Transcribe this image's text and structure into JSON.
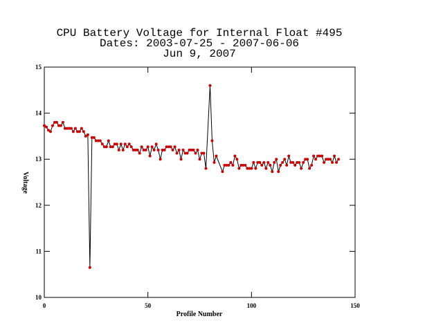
{
  "chart_data": {
    "type": "line",
    "title": "CPU Battery Voltage for Internal Float #495",
    "subtitle": "Dates:  2003-07-25 -  2007-06-06",
    "date_line": "Jun  9, 2007",
    "x_label": "Profile Number",
    "y_label": "Voltage",
    "xlim": [
      0,
      150
    ],
    "xticks": [
      0,
      50,
      100,
      150
    ],
    "ylim": [
      10,
      15
    ],
    "yticks": [
      10,
      11,
      12,
      13,
      14,
      15
    ],
    "series": [
      {
        "name": "Voltage",
        "color": "#000000",
        "marker_color": "#cc0000",
        "x": [
          0,
          1,
          2,
          3,
          4,
          5,
          6,
          7,
          8,
          9,
          10,
          11,
          12,
          13,
          14,
          15,
          16,
          17,
          18,
          19,
          20,
          21,
          22,
          23,
          24,
          25,
          26,
          27,
          28,
          29,
          30,
          31,
          32,
          33,
          34,
          35,
          36,
          37,
          38,
          39,
          40,
          41,
          42,
          43,
          44,
          45,
          46,
          47,
          48,
          49,
          50,
          51,
          52,
          53,
          54,
          55,
          56,
          57,
          58,
          59,
          60,
          61,
          62,
          63,
          64,
          65,
          66,
          67,
          68,
          69,
          70,
          71,
          72,
          73,
          74,
          75,
          76,
          77,
          78,
          80,
          81,
          82,
          83,
          86,
          87,
          88,
          89,
          90,
          91,
          92,
          93,
          94,
          95,
          96,
          97,
          98,
          99,
          100,
          101,
          102,
          103,
          104,
          105,
          106,
          107,
          108,
          109,
          110,
          111,
          112,
          113,
          114,
          115,
          116,
          117,
          118,
          119,
          120,
          121,
          122,
          123,
          124,
          125,
          126,
          127,
          128,
          129,
          130,
          131,
          132,
          133,
          134,
          135,
          136,
          137,
          138,
          139,
          140,
          141,
          142
        ],
        "values": [
          13.73,
          13.7,
          13.63,
          13.6,
          13.73,
          13.8,
          13.8,
          13.73,
          13.73,
          13.8,
          13.67,
          13.67,
          13.67,
          13.67,
          13.6,
          13.67,
          13.6,
          13.6,
          13.67,
          13.6,
          13.5,
          13.53,
          10.65,
          13.47,
          13.47,
          13.4,
          13.4,
          13.4,
          13.33,
          13.27,
          13.27,
          13.4,
          13.27,
          13.27,
          13.33,
          13.33,
          13.2,
          13.33,
          13.2,
          13.33,
          13.27,
          13.33,
          13.27,
          13.2,
          13.2,
          13.2,
          13.13,
          13.27,
          13.2,
          13.2,
          13.27,
          13.07,
          13.27,
          13.2,
          13.33,
          13.2,
          13.0,
          13.2,
          13.2,
          13.27,
          13.27,
          13.27,
          13.2,
          13.27,
          13.13,
          13.2,
          13.0,
          13.2,
          13.13,
          13.13,
          13.2,
          13.2,
          13.2,
          13.13,
          13.2,
          13.0,
          13.13,
          13.13,
          12.8,
          14.6,
          13.4,
          12.93,
          13.07,
          12.73,
          12.87,
          12.87,
          12.87,
          12.93,
          12.87,
          13.07,
          13.0,
          12.8,
          12.87,
          12.87,
          12.87,
          12.8,
          12.8,
          12.8,
          12.93,
          12.8,
          12.93,
          12.93,
          12.87,
          12.93,
          12.8,
          12.93,
          12.87,
          12.73,
          12.93,
          13.0,
          12.73,
          12.87,
          12.93,
          13.0,
          12.87,
          13.07,
          12.93,
          12.93,
          12.87,
          12.93,
          12.93,
          12.8,
          12.93,
          13.0,
          13.0,
          12.8,
          12.87,
          13.07,
          13.0,
          13.07,
          13.07,
          13.07,
          12.93,
          13.0,
          13.0,
          13.0,
          12.93,
          13.07,
          12.93,
          13.0
        ]
      }
    ]
  }
}
